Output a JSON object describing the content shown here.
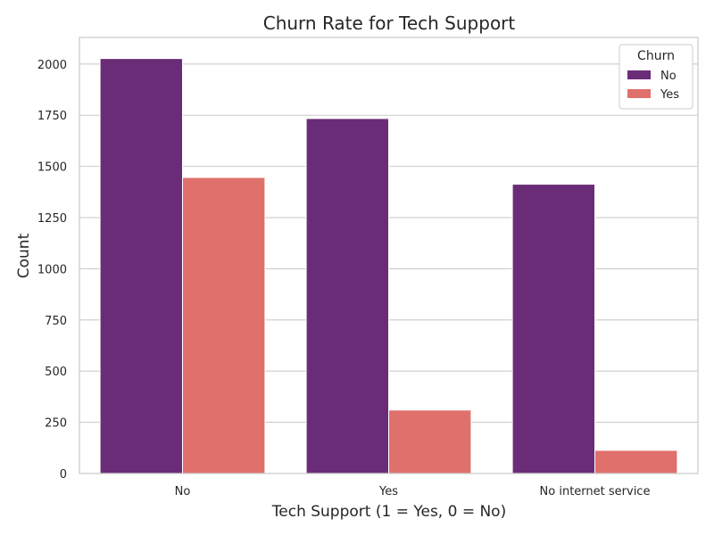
{
  "chart_data": {
    "type": "bar",
    "title": "Churn Rate for Tech Support",
    "xlabel": "Tech Support (1 = Yes, 0 = No)",
    "ylabel": "Count",
    "categories": [
      "No",
      "Yes",
      "No internet service"
    ],
    "series": [
      {
        "name": "No",
        "values": [
          2027,
          1734,
          1413
        ],
        "color": "#6a2c76"
      },
      {
        "name": "Yes",
        "values": [
          1446,
          310,
          113
        ],
        "color": "#e0706c"
      }
    ],
    "ylim": [
      0,
      2130
    ],
    "yticks": [
      0,
      250,
      500,
      750,
      1000,
      1250,
      1500,
      1750,
      2000
    ],
    "grid": true,
    "legend": {
      "title": "Churn",
      "placement": "top-right"
    }
  }
}
